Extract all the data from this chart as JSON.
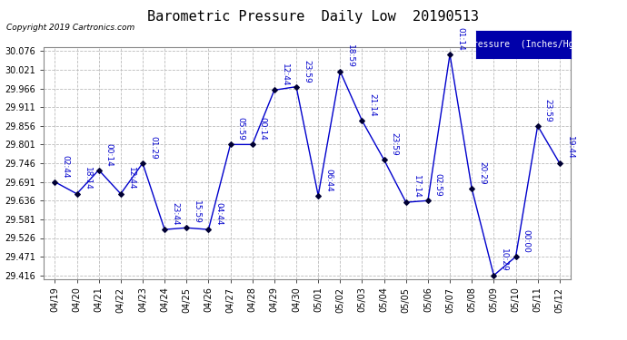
{
  "title": "Barometric Pressure  Daily Low  20190513",
  "copyright": "Copyright 2019 Cartronics.com",
  "legend_label": "Pressure  (Inches/Hg)",
  "dates": [
    "04/19",
    "04/20",
    "04/21",
    "04/22",
    "04/23",
    "04/24",
    "04/25",
    "04/26",
    "04/27",
    "04/28",
    "04/29",
    "04/30",
    "05/01",
    "05/02",
    "05/03",
    "05/04",
    "05/05",
    "05/06",
    "05/07",
    "05/08",
    "05/09",
    "05/10",
    "05/11",
    "05/12"
  ],
  "values": [
    29.691,
    29.656,
    29.726,
    29.656,
    29.746,
    29.551,
    29.556,
    29.551,
    29.801,
    29.801,
    29.961,
    29.971,
    29.651,
    30.016,
    29.871,
    29.756,
    29.631,
    29.636,
    30.066,
    29.671,
    29.416,
    29.471,
    29.856,
    29.746
  ],
  "time_labels": [
    "02:44",
    "18:14",
    "00:14",
    "12:44",
    "01:29",
    "23:44",
    "15:59",
    "04:44",
    "05:59",
    "00:14",
    "12:44",
    "23:59",
    "06:44",
    "18:59",
    "21:14",
    "23:59",
    "17:14",
    "02:59",
    "01:14",
    "20:29",
    "10:29",
    "00:00",
    "23:59",
    "19:44"
  ],
  "line_color": "#0000cc",
  "marker_color": "#000033",
  "bg_color": "#ffffff",
  "grid_color": "#bbbbbb",
  "title_color": "#000000",
  "legend_bg": "#0000aa",
  "legend_fg": "#ffffff",
  "ylim_min": 29.416,
  "ylim_max": 30.076,
  "ytick_step": 0.055,
  "label_fontsize": 6.5,
  "title_fontsize": 11
}
